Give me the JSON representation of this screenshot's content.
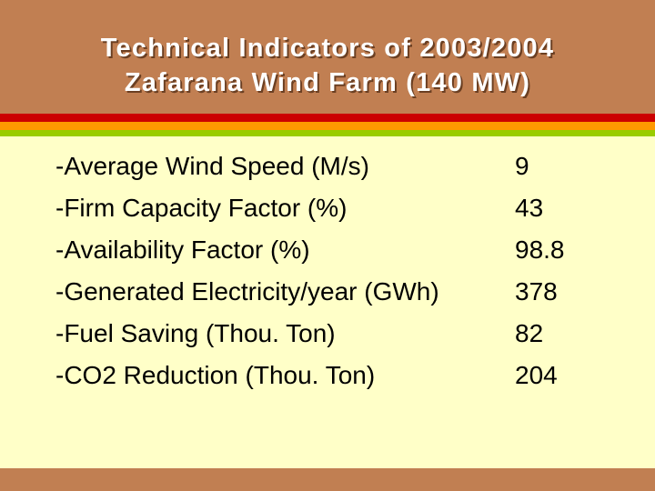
{
  "slide": {
    "title": "Technical Indicators of 2003/2004\nZafarana Wind Farm (140 MW)"
  },
  "indicators": [
    {
      "label": "-Average Wind Speed (M/s)",
      "value": "9"
    },
    {
      "label": "-Firm Capacity Factor (%)",
      "value": "43"
    },
    {
      "label": "-Availability Factor (%)",
      "value": "98.8"
    },
    {
      "label": "-Generated Electricity/year (GWh)",
      "value": "378"
    },
    {
      "label": "-Fuel Saving (Thou. Ton)",
      "value": "82"
    },
    {
      "label": "-CO2 Reduction (Thou. Ton)",
      "value": "204"
    }
  ],
  "colors": {
    "header": "#c17f52",
    "background": "#ffffc8",
    "stripe_red": "#cc0000",
    "stripe_orange": "#ff9900",
    "stripe_green": "#99cc00"
  }
}
